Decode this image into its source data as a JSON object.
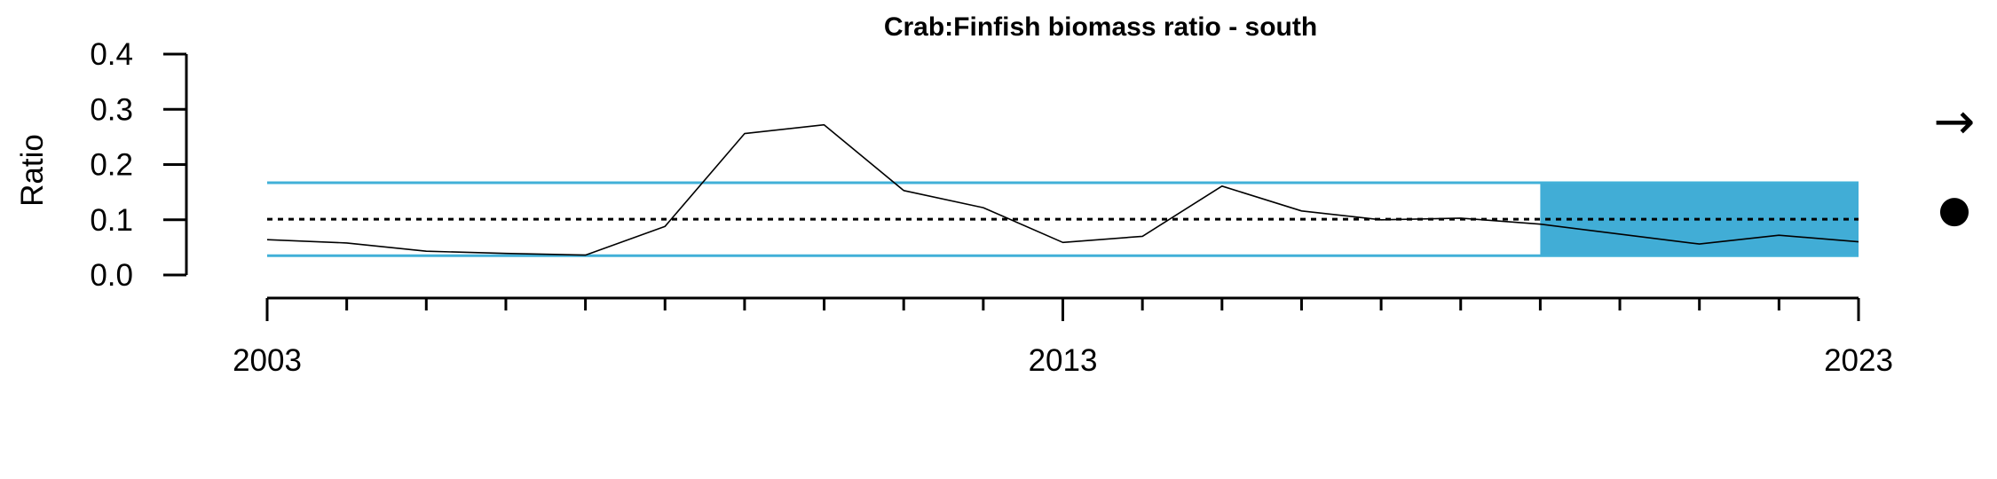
{
  "chart_data": {
    "type": "line",
    "title": "Crab:Finfish biomass ratio - south",
    "xlabel": "",
    "ylabel": "Ratio",
    "xlim": [
      2003,
      2023
    ],
    "ylim": [
      0,
      0.4
    ],
    "y_ticks": [
      0.0,
      0.1,
      0.2,
      0.3,
      0.4
    ],
    "y_tick_labels": [
      "0.0",
      "0.1",
      "0.2",
      "0.3",
      "0.4"
    ],
    "x_minor_ticks": [
      2003,
      2004,
      2005,
      2006,
      2007,
      2008,
      2009,
      2010,
      2011,
      2012,
      2013,
      2014,
      2015,
      2016,
      2017,
      2018,
      2019,
      2020,
      2021,
      2022,
      2023
    ],
    "x_major_ticks": [
      2003,
      2013,
      2023
    ],
    "x_tick_labels": [
      "2003",
      "2013",
      "2023"
    ],
    "x": [
      2003,
      2004,
      2005,
      2006,
      2007,
      2008,
      2009,
      2010,
      2011,
      2012,
      2013,
      2014,
      2015,
      2016,
      2017,
      2018,
      2019,
      2020,
      2021,
      2022,
      2023
    ],
    "values": [
      0.064,
      0.058,
      0.043,
      0.039,
      0.036,
      0.088,
      0.256,
      0.272,
      0.153,
      0.122,
      0.059,
      0.07,
      0.161,
      0.116,
      0.1,
      0.103,
      0.092,
      0.074,
      0.056,
      0.072,
      0.06
    ],
    "mean": 0.101,
    "upper_band": 0.167,
    "lower_band": 0.035,
    "recent_window": [
      2019,
      2023
    ],
    "grid": false,
    "trend_symbol": "→",
    "status_symbol": "●",
    "colors": {
      "line": "#000000",
      "band": "#41b0d8",
      "shade": "#41add6",
      "mean": "#000000"
    }
  }
}
